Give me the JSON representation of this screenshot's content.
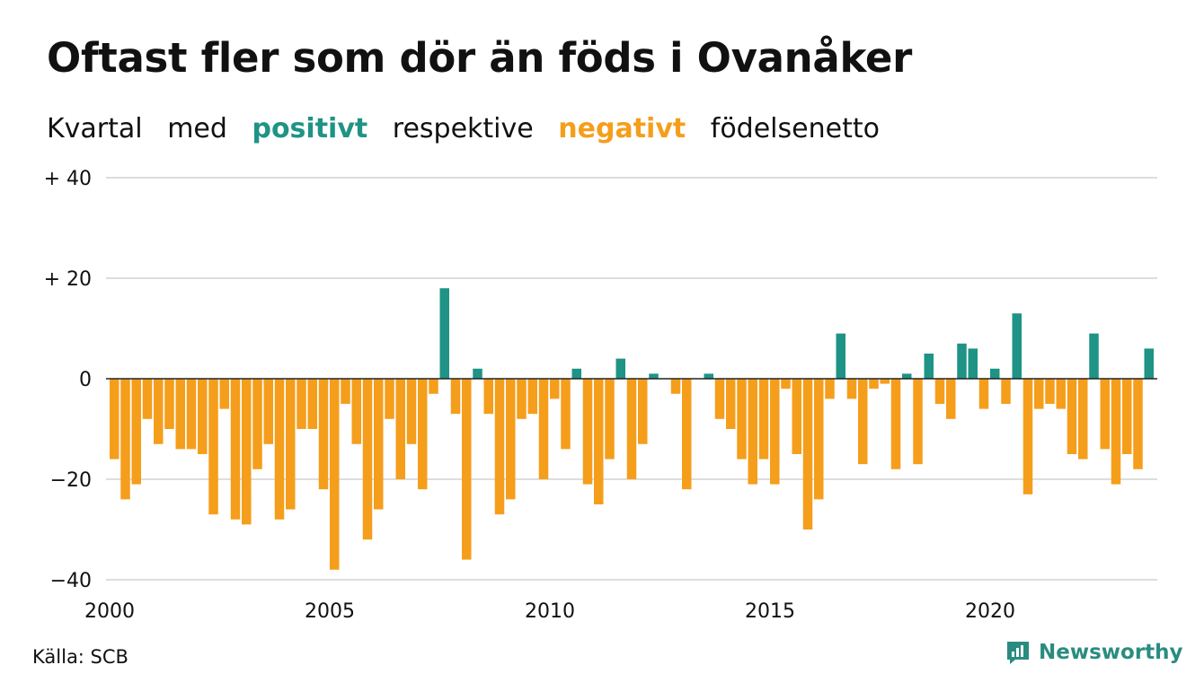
{
  "title": "Oftast fler som dör än föds i Ovanåker",
  "subtitle": {
    "w1": "Kvartal",
    "w2": "med",
    "positive": "positivt",
    "w3": "respektive",
    "negative": "negativt",
    "w4": "födelsenetto"
  },
  "colors": {
    "positive": "#1f9385",
    "negative": "#f59e1b",
    "grid": "#dddddd",
    "axis": "#222222"
  },
  "source": "Källa: SCB",
  "brand": {
    "name": "Newsworthy",
    "icon": "newsworthy-logo-icon"
  },
  "chart_data": {
    "type": "bar",
    "title": "Oftast fler som dör än föds i Ovanåker",
    "xlabel": "",
    "ylabel": "",
    "ylim": [
      -40,
      40
    ],
    "grid": true,
    "yticks": [
      {
        "value": 40,
        "label": "+ 40"
      },
      {
        "value": 20,
        "label": "+ 20"
      },
      {
        "value": 0,
        "label": "0"
      },
      {
        "value": -20,
        "label": "−20"
      },
      {
        "value": -40,
        "label": "−40"
      }
    ],
    "xticks": [
      {
        "value": 2000,
        "label": "2000"
      },
      {
        "value": 2005,
        "label": "2005"
      },
      {
        "value": 2010,
        "label": "2010"
      },
      {
        "value": 2015,
        "label": "2015"
      },
      {
        "value": 2020,
        "label": "2020"
      }
    ],
    "start": "2000 Q1",
    "values": [
      -16,
      -24,
      -21,
      -8,
      -13,
      -10,
      -14,
      -14,
      -15,
      -27,
      -6,
      -28,
      -29,
      -18,
      -13,
      -28,
      -26,
      -10,
      -10,
      -22,
      -38,
      -5,
      -13,
      -32,
      -26,
      -8,
      -20,
      -13,
      -22,
      -3,
      18,
      -7,
      -36,
      2,
      -7,
      -27,
      -24,
      -8,
      -7,
      -20,
      -4,
      -14,
      2,
      -21,
      -25,
      -16,
      4,
      -20,
      -13,
      1,
      0,
      -3,
      -22,
      0,
      1,
      -8,
      -10,
      -16,
      -21,
      -16,
      -21,
      -2,
      -15,
      -30,
      -24,
      -4,
      9,
      -4,
      -17,
      -2,
      -1,
      -18,
      1,
      -17,
      5,
      -5,
      -8,
      7,
      6,
      -6,
      2,
      -5,
      13,
      -23,
      -6,
      -5,
      -6,
      -15,
      -16,
      9,
      -14,
      -21,
      -15,
      -18,
      6
    ]
  }
}
